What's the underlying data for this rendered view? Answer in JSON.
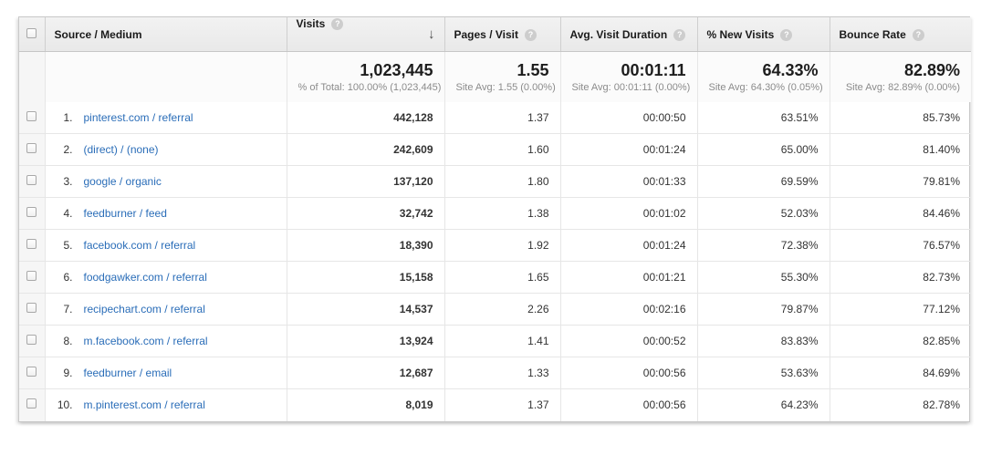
{
  "colors": {
    "link_blue": "#2a6db8",
    "header_bg": "#ededed",
    "value_text": "#333333",
    "sub_text": "#8b8b8b"
  },
  "icons": {
    "help": "?",
    "sort_desc": "↓"
  },
  "table": {
    "headers": {
      "source_medium": "Source / Medium",
      "visits": "Visits",
      "pages_per_visit": "Pages / Visit",
      "avg_visit_duration": "Avg. Visit Duration",
      "pct_new_visits": "% New Visits",
      "bounce_rate": "Bounce Rate"
    },
    "summary": {
      "visits": "1,023,445",
      "visits_sub": "% of Total: 100.00% (1,023,445)",
      "pages": "1.55",
      "pages_sub": "Site Avg: 1.55 (0.00%)",
      "duration": "00:01:11",
      "duration_sub": "Site Avg: 00:01:11 (0.00%)",
      "new_visits": "64.33%",
      "new_visits_sub": "Site Avg: 64.30% (0.05%)",
      "bounce": "82.89%",
      "bounce_sub": "Site Avg: 82.89% (0.00%)"
    },
    "rows": [
      {
        "index": "1.",
        "source": "pinterest.com / referral",
        "visits": "442,128",
        "pages": "1.37",
        "duration": "00:00:50",
        "new_visits": "63.51%",
        "bounce": "85.73%"
      },
      {
        "index": "2.",
        "source": "(direct) / (none)",
        "visits": "242,609",
        "pages": "1.60",
        "duration": "00:01:24",
        "new_visits": "65.00%",
        "bounce": "81.40%"
      },
      {
        "index": "3.",
        "source": "google / organic",
        "visits": "137,120",
        "pages": "1.80",
        "duration": "00:01:33",
        "new_visits": "69.59%",
        "bounce": "79.81%"
      },
      {
        "index": "4.",
        "source": "feedburner / feed",
        "visits": "32,742",
        "pages": "1.38",
        "duration": "00:01:02",
        "new_visits": "52.03%",
        "bounce": "84.46%"
      },
      {
        "index": "5.",
        "source": "facebook.com / referral",
        "visits": "18,390",
        "pages": "1.92",
        "duration": "00:01:24",
        "new_visits": "72.38%",
        "bounce": "76.57%"
      },
      {
        "index": "6.",
        "source": "foodgawker.com / referral",
        "visits": "15,158",
        "pages": "1.65",
        "duration": "00:01:21",
        "new_visits": "55.30%",
        "bounce": "82.73%"
      },
      {
        "index": "7.",
        "source": "recipechart.com / referral",
        "visits": "14,537",
        "pages": "2.26",
        "duration": "00:02:16",
        "new_visits": "79.87%",
        "bounce": "77.12%"
      },
      {
        "index": "8.",
        "source": "m.facebook.com / referral",
        "visits": "13,924",
        "pages": "1.41",
        "duration": "00:00:52",
        "new_visits": "83.83%",
        "bounce": "82.85%"
      },
      {
        "index": "9.",
        "source": "feedburner / email",
        "visits": "12,687",
        "pages": "1.33",
        "duration": "00:00:56",
        "new_visits": "53.63%",
        "bounce": "84.69%"
      },
      {
        "index": "10.",
        "source": "m.pinterest.com / referral",
        "visits": "8,019",
        "pages": "1.37",
        "duration": "00:00:56",
        "new_visits": "64.23%",
        "bounce": "82.78%"
      }
    ]
  }
}
